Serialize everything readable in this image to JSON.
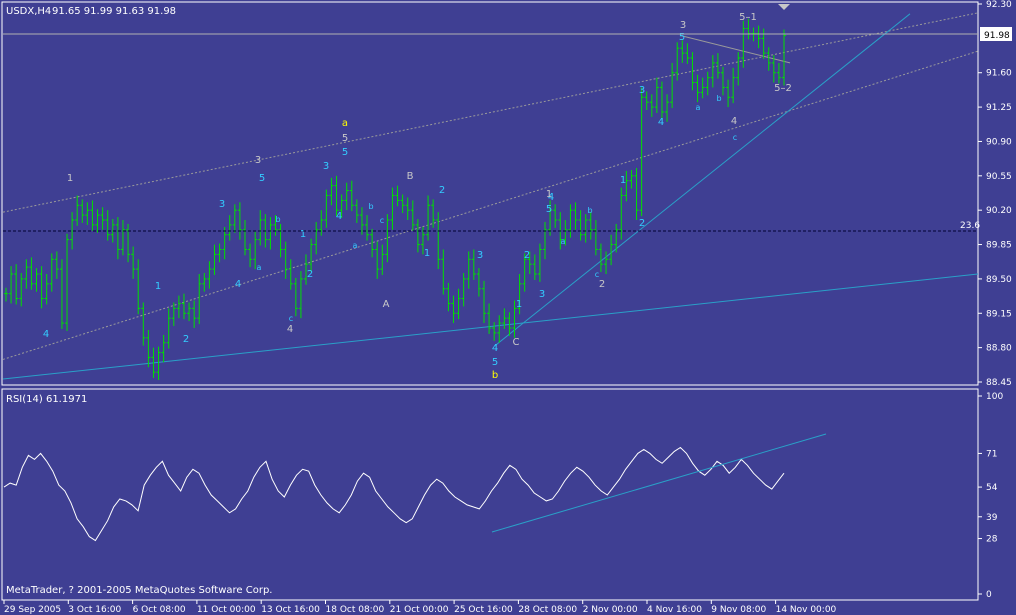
{
  "header": {
    "symbol": "USDX,H4",
    "ohlc": "91.65 91.99 91.63 91.98",
    "rsi_label": "RSI(14) 61.1971",
    "copyright": "MetaTrader, ? 2001-2005 MetaQuotes Software Corp."
  },
  "colors": {
    "background": "#3f3f93",
    "bar_up": "#00e000",
    "axis_text": "#ffffff",
    "wave_cyan": "#33ccff",
    "wave_grey": "#c8c8c8",
    "wave_yellow": "#ffff00",
    "trend_line": "#2aa0c8",
    "dotted_line": "#9a9a9a",
    "fib_line": "#000033",
    "rsi_line": "#ffffff"
  },
  "chart_data": [
    {
      "type": "ohlc",
      "name": "price",
      "x_ticks": [
        "29 Sep 2005",
        "3 Oct 16:00",
        "6 Oct 08:00",
        "11 Oct 00:00",
        "13 Oct 16:00",
        "18 Oct 08:00",
        "21 Oct 00:00",
        "25 Oct 16:00",
        "28 Oct 08:00",
        "2 Nov 00:00",
        "4 Nov 16:00",
        "9 Nov 08:00",
        "14 Nov 00:00"
      ],
      "y_ticks": [
        "92.30",
        "91.98",
        "91.60",
        "91.25",
        "90.90",
        "90.55",
        "90.20",
        "89.85",
        "89.50",
        "89.15",
        "88.80",
        "88.45"
      ],
      "ylim": [
        88.45,
        92.3
      ],
      "current_price": "91.98",
      "fib_level": {
        "label": "23.6",
        "value": 89.99
      },
      "closes": [
        89.35,
        89.55,
        89.3,
        89.5,
        89.62,
        89.45,
        89.55,
        89.3,
        89.45,
        89.7,
        89.6,
        89.05,
        89.9,
        90.1,
        90.25,
        90.15,
        90.2,
        90.05,
        90.15,
        90.1,
        89.95,
        90.05,
        89.8,
        90.0,
        89.75,
        89.6,
        89.2,
        88.9,
        88.7,
        88.55,
        88.75,
        88.85,
        89.1,
        89.2,
        89.25,
        89.15,
        89.2,
        89.1,
        89.45,
        89.5,
        89.6,
        89.75,
        89.8,
        89.95,
        90.05,
        90.2,
        90.0,
        89.8,
        89.7,
        89.9,
        90.1,
        89.9,
        90.05,
        90.0,
        89.8,
        89.6,
        89.45,
        89.2,
        89.5,
        89.65,
        89.85,
        90.0,
        90.1,
        90.35,
        90.45,
        90.2,
        90.3,
        90.4,
        90.25,
        90.15,
        90.05,
        89.95,
        89.8,
        89.6,
        89.75,
        90.1,
        90.35,
        90.3,
        90.25,
        90.2,
        90.05,
        89.85,
        89.95,
        90.25,
        90.1,
        89.7,
        89.4,
        89.25,
        89.15,
        89.3,
        89.5,
        89.7,
        89.55,
        89.4,
        89.15,
        89.0,
        88.95,
        89.05,
        89.1,
        89.0,
        89.2,
        89.45,
        89.7,
        89.65,
        89.55,
        89.8,
        90.0,
        90.2,
        90.1,
        89.9,
        90.0,
        90.2,
        90.1,
        89.95,
        90.1,
        90.0,
        89.8,
        89.65,
        89.7,
        89.85,
        90.0,
        90.35,
        90.5,
        90.55,
        90.2,
        91.35,
        91.3,
        91.25,
        91.45,
        91.2,
        91.3,
        91.6,
        91.85,
        91.8,
        91.75,
        91.5,
        91.4,
        91.45,
        91.55,
        91.7,
        91.6,
        91.45,
        91.35,
        91.55,
        91.75,
        92.05,
        92.0,
        92.0,
        91.95,
        91.8,
        91.7,
        91.6,
        91.55,
        91.98
      ],
      "annotations": [
        {
          "text": "1",
          "kind": "grey"
        },
        {
          "text": "4",
          "kind": "cyan"
        },
        {
          "text": "1",
          "kind": "cyan"
        },
        {
          "text": "2",
          "kind": "cyan"
        },
        {
          "text": "3",
          "kind": "cyan"
        },
        {
          "text": "4",
          "kind": "cyan"
        },
        {
          "text": "3",
          "kind": "grey"
        },
        {
          "text": "5",
          "kind": "cyan"
        },
        {
          "text": "a",
          "kind": "cyan"
        },
        {
          "text": "b",
          "kind": "cyan"
        },
        {
          "text": "c",
          "kind": "cyan"
        },
        {
          "text": "4",
          "kind": "grey"
        },
        {
          "text": "1",
          "kind": "cyan"
        },
        {
          "text": "2",
          "kind": "cyan"
        },
        {
          "text": "3",
          "kind": "cyan"
        },
        {
          "text": "4",
          "kind": "cyan"
        },
        {
          "text": "a",
          "kind": "yellow"
        },
        {
          "text": "5",
          "kind": "grey"
        },
        {
          "text": "5",
          "kind": "cyan"
        },
        {
          "text": "a",
          "kind": "cyan"
        },
        {
          "text": "b",
          "kind": "cyan"
        },
        {
          "text": "c",
          "kind": "cyan"
        },
        {
          "text": "A",
          "kind": "grey"
        },
        {
          "text": "B",
          "kind": "grey"
        },
        {
          "text": "1",
          "kind": "cyan"
        },
        {
          "text": "2",
          "kind": "cyan"
        },
        {
          "text": "3",
          "kind": "cyan"
        },
        {
          "text": "4",
          "kind": "cyan"
        },
        {
          "text": "5",
          "kind": "cyan"
        },
        {
          "text": "C",
          "kind": "grey"
        },
        {
          "text": "b",
          "kind": "yellow"
        },
        {
          "text": "1",
          "kind": "cyan"
        },
        {
          "text": "2",
          "kind": "cyan"
        },
        {
          "text": "3",
          "kind": "cyan"
        },
        {
          "text": "4",
          "kind": "cyan"
        },
        {
          "text": "1",
          "kind": "grey"
        },
        {
          "text": "5",
          "kind": "cyan"
        },
        {
          "text": "a",
          "kind": "cyan"
        },
        {
          "text": "b",
          "kind": "cyan"
        },
        {
          "text": "c",
          "kind": "cyan"
        },
        {
          "text": "2",
          "kind": "grey"
        },
        {
          "text": "1",
          "kind": "cyan"
        },
        {
          "text": "2",
          "kind": "cyan"
        },
        {
          "text": "3",
          "kind": "cyan"
        },
        {
          "text": "4",
          "kind": "cyan"
        },
        {
          "text": "3",
          "kind": "grey"
        },
        {
          "text": "5",
          "kind": "cyan"
        },
        {
          "text": "a",
          "kind": "cyan"
        },
        {
          "text": "b",
          "kind": "cyan"
        },
        {
          "text": "c",
          "kind": "cyan"
        },
        {
          "text": "4",
          "kind": "grey"
        },
        {
          "text": "5–1",
          "kind": "grey"
        },
        {
          "text": "5–2",
          "kind": "grey"
        }
      ]
    },
    {
      "type": "line",
      "name": "RSI(14)",
      "value": "61.1971",
      "y_ticks": [
        "100",
        "71",
        "54",
        "39",
        "28",
        "0"
      ],
      "ylim": [
        0,
        100
      ],
      "values": [
        54,
        56,
        55,
        64,
        70,
        68,
        71,
        67,
        62,
        55,
        52,
        46,
        38,
        34,
        29,
        27,
        32,
        37,
        44,
        48,
        47,
        45,
        42,
        55,
        60,
        64,
        67,
        60,
        56,
        52,
        59,
        63,
        61,
        55,
        50,
        47,
        44,
        41,
        43,
        48,
        52,
        59,
        64,
        67,
        58,
        52,
        49,
        55,
        60,
        63,
        62,
        55,
        50,
        46,
        43,
        41,
        45,
        50,
        57,
        61,
        59,
        52,
        48,
        44,
        41,
        38,
        36,
        38,
        44,
        50,
        55,
        58,
        56,
        52,
        49,
        47,
        45,
        44,
        43,
        47,
        52,
        56,
        61,
        65,
        63,
        58,
        55,
        51,
        49,
        47,
        48,
        52,
        57,
        61,
        64,
        62,
        59,
        55,
        52,
        50,
        54,
        58,
        63,
        67,
        71,
        73,
        71,
        68,
        66,
        69,
        72,
        74,
        71,
        66,
        62,
        60,
        63,
        67,
        65,
        61,
        64,
        68,
        65,
        61,
        58,
        55,
        53,
        57,
        61
      ]
    }
  ]
}
